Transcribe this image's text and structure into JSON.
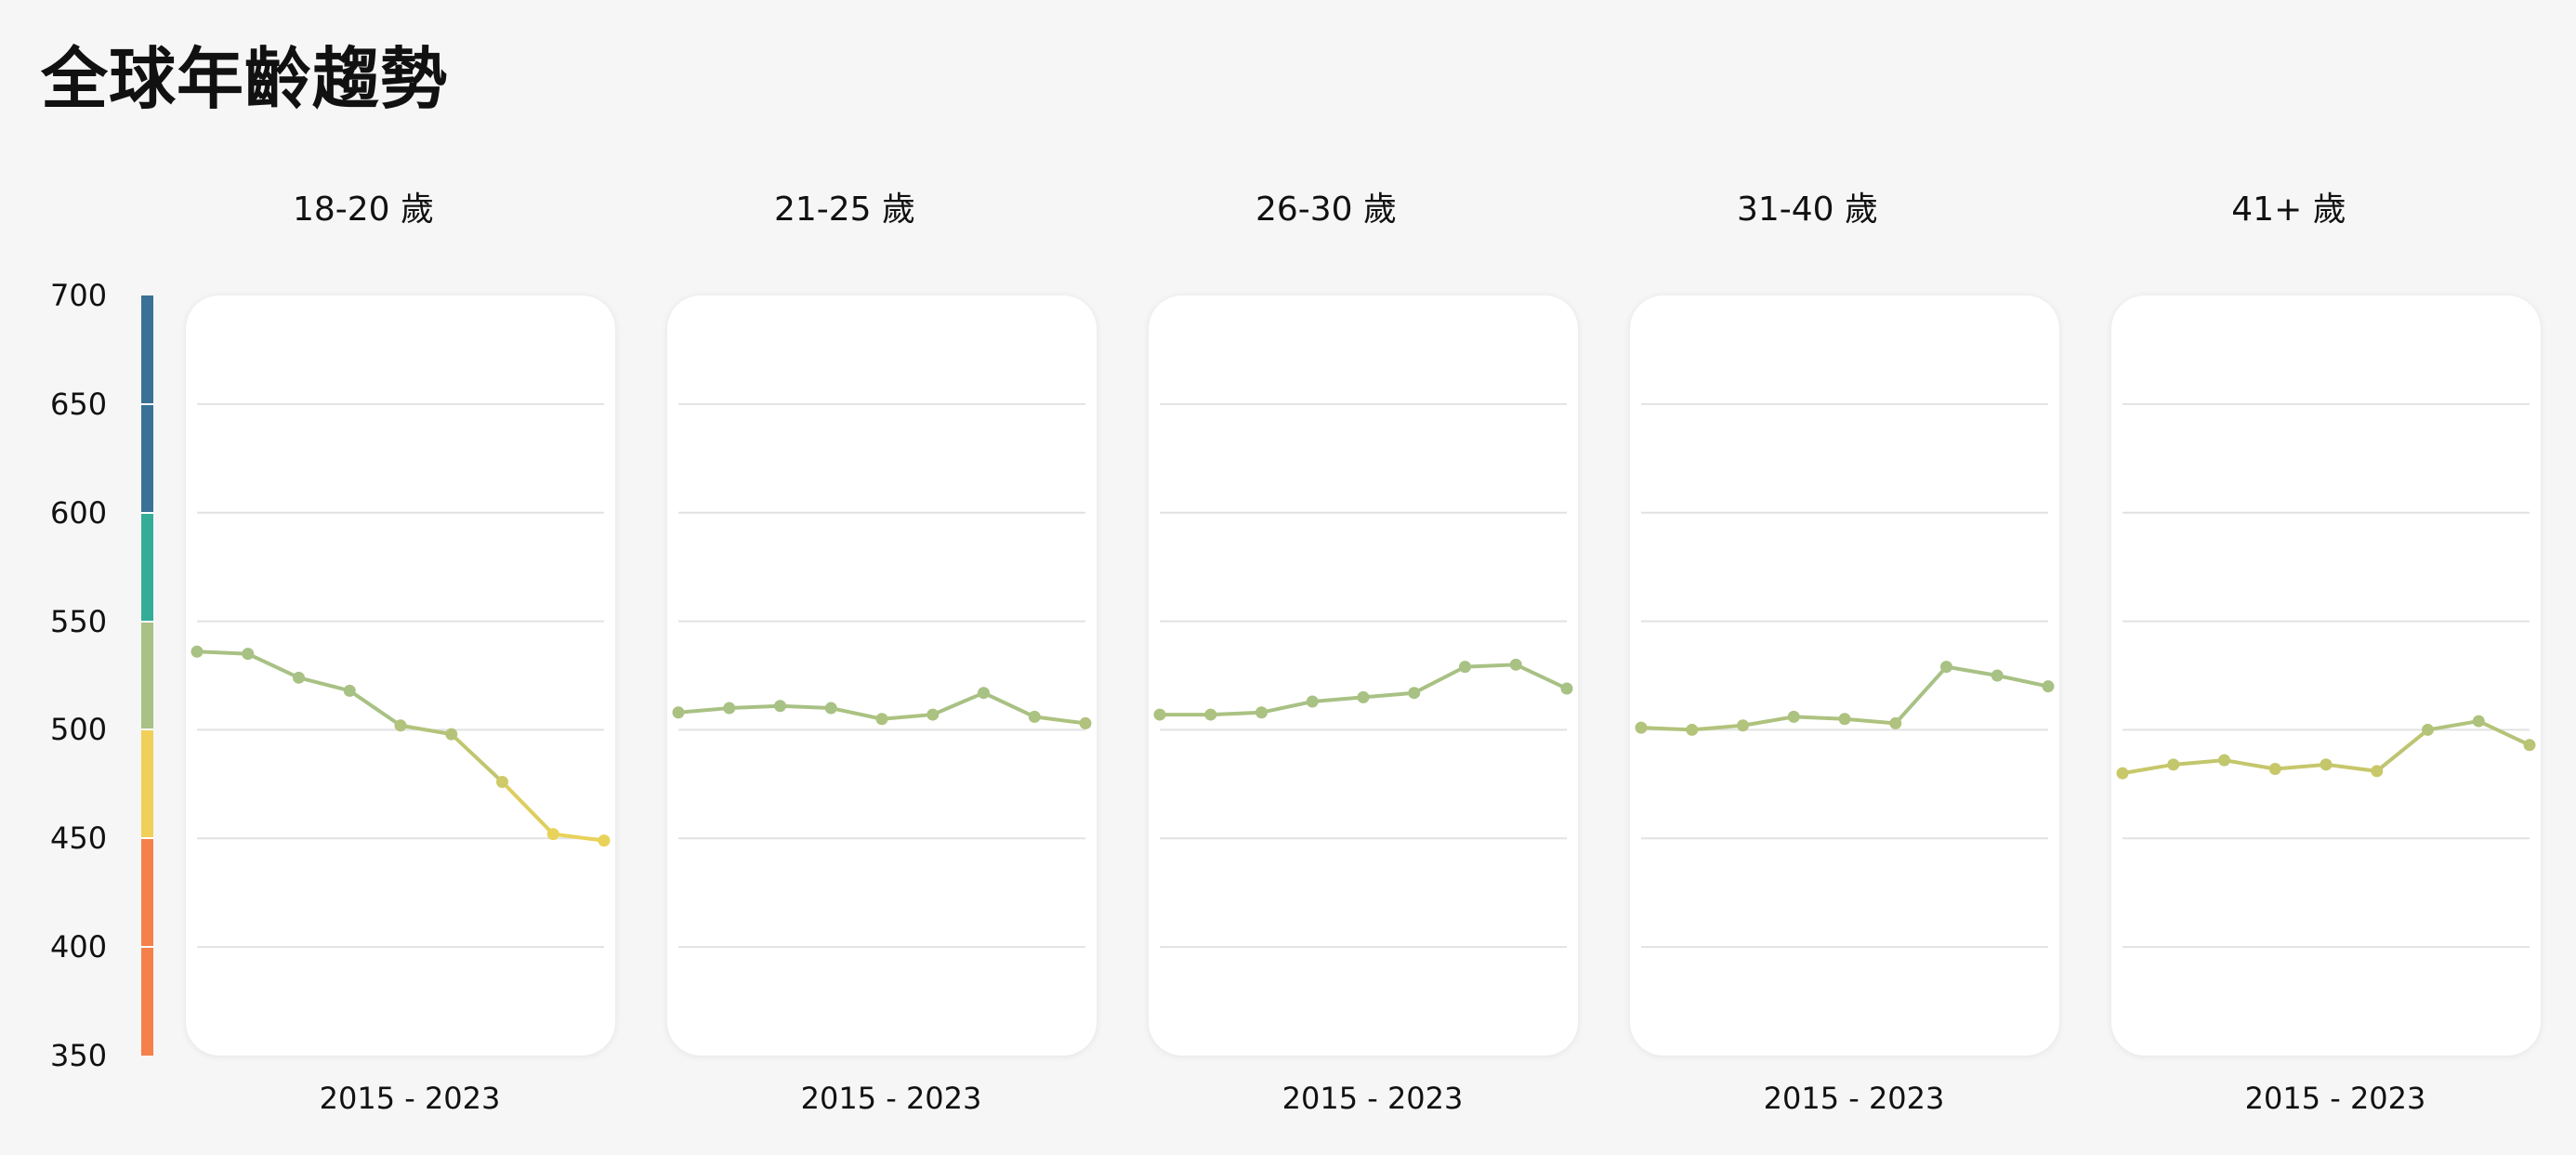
{
  "title": "全球年齡趨勢",
  "colors": {
    "background": "#f6f6f6",
    "card": "#ffffff",
    "grid": "#e2e2e2",
    "scale": [
      {
        "from": 350,
        "to": 450,
        "color": "#f5804a"
      },
      {
        "from": 450,
        "to": 500,
        "color": "#f1d05a"
      },
      {
        "from": 500,
        "to": 550,
        "color": "#a8c184"
      },
      {
        "from": 550,
        "to": 600,
        "color": "#34ad98"
      },
      {
        "from": 600,
        "to": 700,
        "color": "#3a7196"
      }
    ]
  },
  "chart_data": {
    "type": "line",
    "ylim": [
      350,
      700
    ],
    "yticks": [
      "700",
      "650",
      "600",
      "550",
      "500",
      "450",
      "400",
      "350"
    ],
    "grid": true,
    "panels": [
      {
        "label": "18-20 歲",
        "range_label": "2015 - 2023",
        "values": [
          536,
          535,
          524,
          518,
          502,
          498,
          476,
          452,
          449
        ]
      },
      {
        "label": "21-25 歲",
        "range_label": "2015 - 2023",
        "values": [
          508,
          510,
          511,
          510,
          505,
          507,
          517,
          506,
          503
        ]
      },
      {
        "label": "26-30 歲",
        "range_label": "2015 - 2023",
        "values": [
          507,
          507,
          508,
          513,
          515,
          517,
          529,
          530,
          519
        ]
      },
      {
        "label": "31-40 歲",
        "range_label": "2015 - 2023",
        "values": [
          501,
          500,
          502,
          506,
          505,
          503,
          529,
          525,
          520
        ]
      },
      {
        "label": "41+ 歲",
        "range_label": "2015 - 2023",
        "values": [
          480,
          484,
          486,
          482,
          484,
          481,
          500,
          504,
          493
        ]
      }
    ]
  }
}
